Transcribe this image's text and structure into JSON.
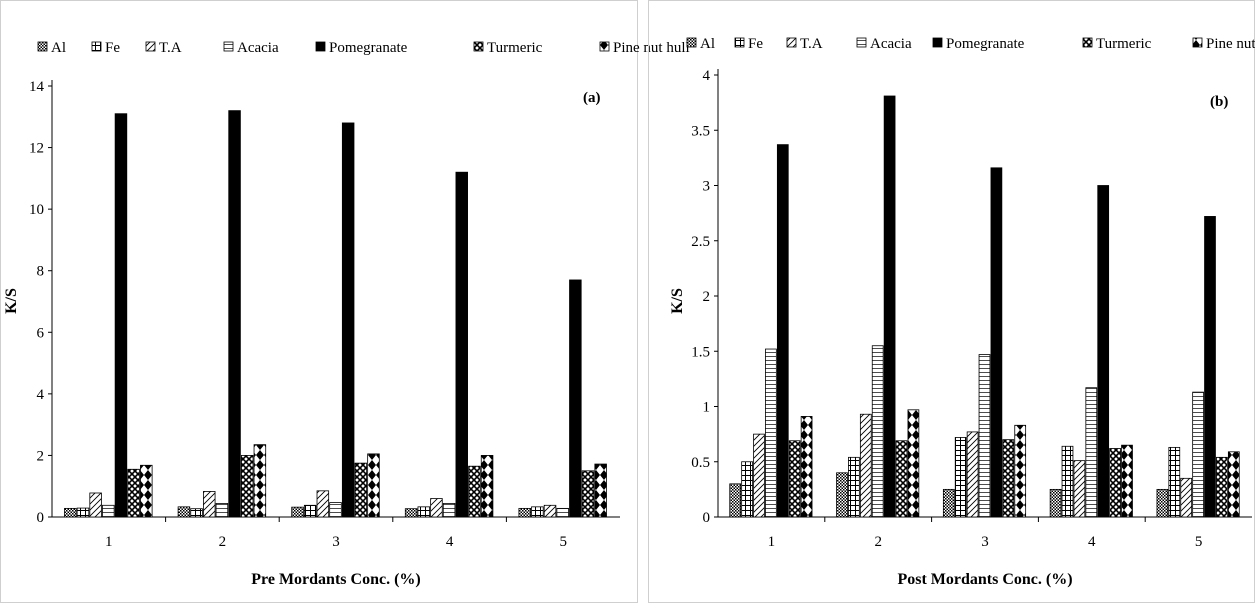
{
  "chart_data": [
    {
      "type": "bar",
      "panel_label": "(a)",
      "xlabel": "Pre Mordants  Conc. (%)",
      "ylabel": "K/S",
      "categories": [
        "1",
        "2",
        "3",
        "4",
        "5"
      ],
      "ylim": [
        0,
        14
      ],
      "yticks": [
        "0",
        "2",
        "4",
        "6",
        "8",
        "10",
        "12",
        "14"
      ],
      "ytick_values": [
        0,
        2,
        4,
        6,
        8,
        10,
        12,
        14
      ],
      "legend_position": "top",
      "series": [
        {
          "name": "Al",
          "values": [
            0.28,
            0.33,
            0.32,
            0.27,
            0.28
          ]
        },
        {
          "name": "Fe",
          "values": [
            0.29,
            0.27,
            0.38,
            0.33,
            0.33
          ]
        },
        {
          "name": "T.A",
          "values": [
            0.78,
            0.83,
            0.85,
            0.6,
            0.38
          ]
        },
        {
          "name": "Acacia",
          "values": [
            0.38,
            0.44,
            0.47,
            0.44,
            0.28
          ]
        },
        {
          "name": "Pomegranate",
          "values": [
            13.1,
            13.2,
            12.8,
            11.2,
            7.7
          ]
        },
        {
          "name": "Turmeric",
          "values": [
            1.55,
            2.0,
            1.75,
            1.65,
            1.5
          ]
        },
        {
          "name": "Pine nut hull",
          "values": [
            1.68,
            2.35,
            2.05,
            2.0,
            1.72
          ]
        }
      ]
    },
    {
      "type": "bar",
      "panel_label": "(b)",
      "xlabel": "Post  Mordants  Conc. (%)",
      "ylabel": "K/S",
      "categories": [
        "1",
        "2",
        "3",
        "4",
        "5"
      ],
      "ylim": [
        0,
        4
      ],
      "yticks": [
        "0",
        "0.5",
        "1",
        "1.5",
        "2",
        "2.5",
        "3",
        "3.5",
        "4"
      ],
      "ytick_values": [
        0,
        0.5,
        1,
        1.5,
        2,
        2.5,
        3,
        3.5,
        4
      ],
      "legend_position": "top",
      "series": [
        {
          "name": "Al",
          "values": [
            0.3,
            0.4,
            0.25,
            0.25,
            0.25
          ]
        },
        {
          "name": "Fe",
          "values": [
            0.5,
            0.54,
            0.72,
            0.64,
            0.63
          ]
        },
        {
          "name": "T.A",
          "values": [
            0.75,
            0.93,
            0.77,
            0.51,
            0.35
          ]
        },
        {
          "name": "Acacia",
          "values": [
            1.52,
            1.55,
            1.47,
            1.17,
            1.13
          ]
        },
        {
          "name": "Pomegranate",
          "values": [
            3.37,
            3.81,
            3.16,
            3.0,
            2.72
          ]
        },
        {
          "name": "Turmeric",
          "values": [
            0.69,
            0.69,
            0.7,
            0.62,
            0.54
          ]
        },
        {
          "name": "Pine nut hull",
          "values": [
            0.91,
            0.97,
            0.83,
            0.65,
            0.59
          ]
        }
      ]
    }
  ],
  "colors": {
    "bar_outline": "#000000",
    "pomegranate_fill": "#000000",
    "background": "#ffffff"
  }
}
